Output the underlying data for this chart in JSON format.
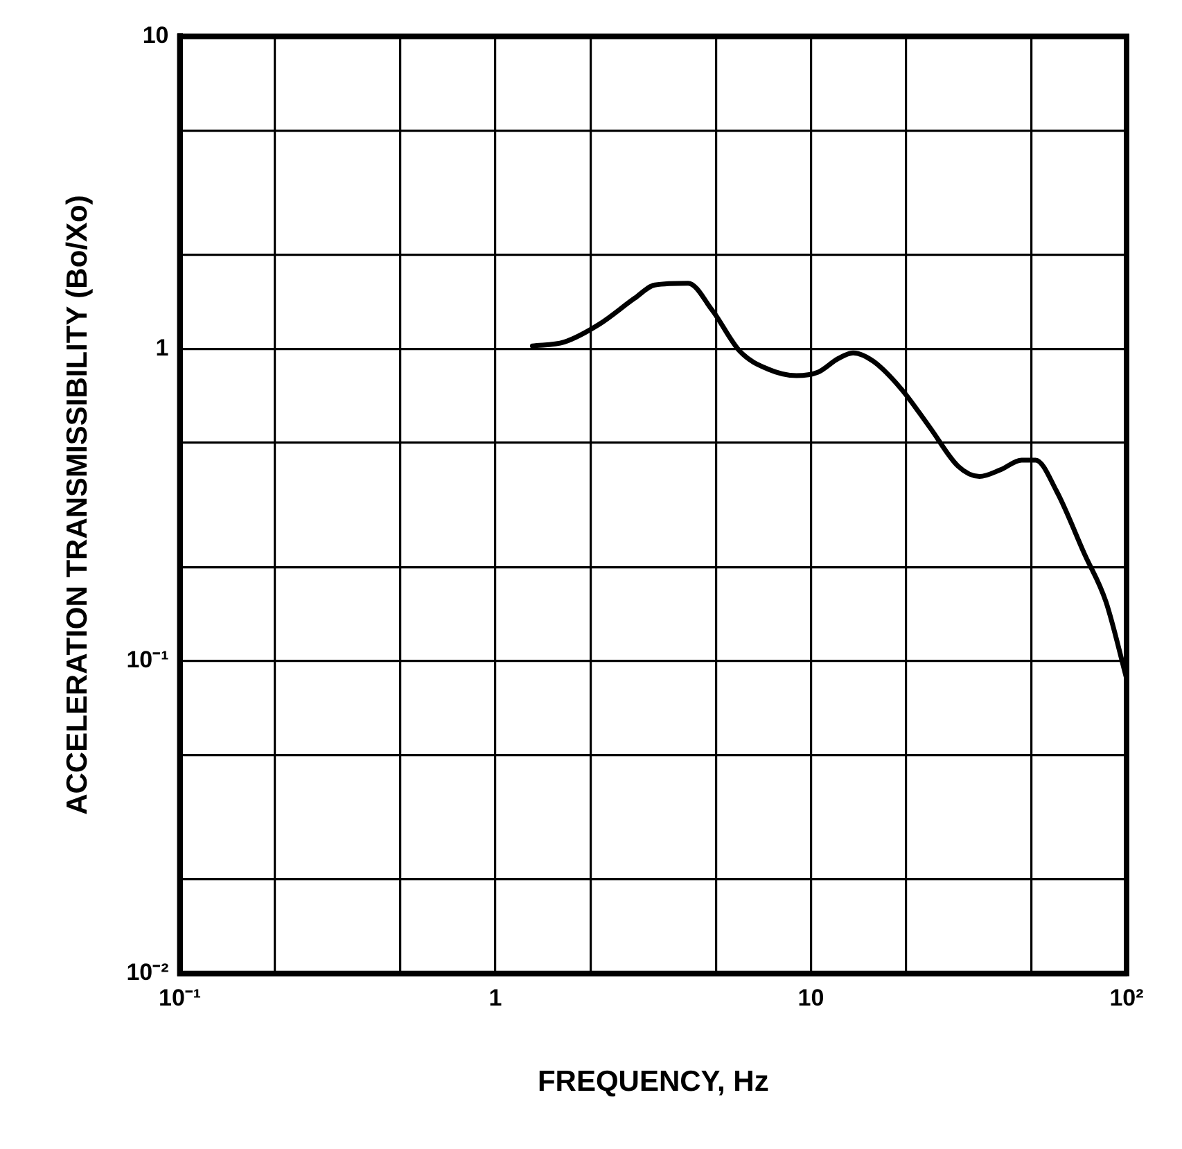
{
  "chart_data": {
    "type": "line",
    "xlabel": "FREQUENCY, Hz",
    "ylabel": "ACCELERATION TRANSMISSIBILITY (Bo/Xo)",
    "log": "xy",
    "grid": true,
    "legend": false,
    "marker": "none",
    "line_style": "solid",
    "xlim": [
      0.1,
      100
    ],
    "ylim": [
      0.01,
      10
    ],
    "xticks": [
      {
        "value": 0.1,
        "label": "10⁻¹"
      },
      {
        "value": 0.2,
        "label": null
      },
      {
        "value": 0.5,
        "label": null
      },
      1,
      {
        "value": 2,
        "label": null
      },
      {
        "value": 5,
        "label": null
      },
      10,
      {
        "value": 20,
        "label": null
      },
      {
        "value": 50,
        "label": null
      },
      {
        "value": 100,
        "label": "10²"
      }
    ],
    "yticks": [
      {
        "value": 0.01,
        "label": "10⁻²"
      },
      {
        "value": 0.02,
        "label": null
      },
      {
        "value": 0.05,
        "label": null
      },
      {
        "value": 0.1,
        "label": "10⁻¹"
      },
      {
        "value": 0.2,
        "label": null
      },
      {
        "value": 0.5,
        "label": null
      },
      1,
      {
        "value": 2,
        "label": null
      },
      {
        "value": 5,
        "label": null
      },
      10
    ],
    "series": [
      {
        "color": "#000000",
        "x": [
          1.31,
          1.65,
          2.14,
          2.76,
          3.2,
          4.08,
          4.86,
          5.96,
          7.32,
          8.99,
          10.5,
          12.2,
          13.6,
          15.8,
          19.4,
          23.8,
          29.3,
          34.2,
          39.9,
          46.5,
          51.5,
          60,
          73.6,
          86,
          100
        ],
        "values": [
          1.02,
          1.05,
          1.2,
          1.45,
          1.6,
          1.62,
          1.33,
          0.98,
          0.86,
          0.82,
          0.84,
          0.93,
          0.97,
          0.91,
          0.74,
          0.56,
          0.42,
          0.39,
          0.41,
          0.44,
          0.44,
          0.35,
          0.22,
          0.155,
          0.088
        ]
      }
    ]
  }
}
